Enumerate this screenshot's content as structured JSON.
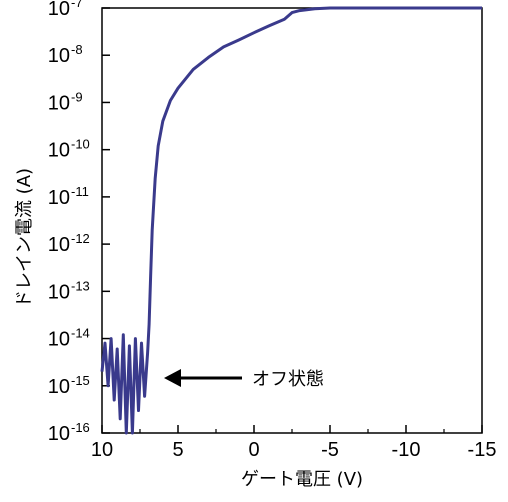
{
  "chart_data": {
    "type": "line",
    "xlabel": "ゲート電圧 (V)",
    "ylabel": "ドレイン電流 (A)",
    "x_ticks": [
      10,
      5,
      0,
      -5,
      -10,
      -15
    ],
    "x_tick_labels": [
      "10",
      "5",
      "0",
      "-5",
      "-10",
      "-15"
    ],
    "xlim": [
      10,
      -15
    ],
    "y_scale": "log",
    "ylim": [
      1e-16,
      1e-07
    ],
    "y_tick_labels": [
      {
        "base": "10",
        "exp": "-7"
      },
      {
        "base": "10",
        "exp": "-8"
      },
      {
        "base": "10",
        "exp": "-9"
      },
      {
        "base": "10",
        "exp": "-10"
      },
      {
        "base": "10",
        "exp": "-11"
      },
      {
        "base": "10",
        "exp": "-12"
      },
      {
        "base": "10",
        "exp": "-13"
      },
      {
        "base": "10",
        "exp": "-14"
      },
      {
        "base": "10",
        "exp": "-15"
      },
      {
        "base": "10",
        "exp": "-16"
      }
    ],
    "series": [
      {
        "color": "#3a3a8c",
        "x": [
          10,
          9.8,
          9.6,
          9.4,
          9.2,
          9.0,
          8.8,
          8.6,
          8.4,
          8.2,
          8.0,
          7.8,
          7.6,
          7.4,
          7.2,
          7.0,
          6.9,
          6.8,
          6.7,
          6.5,
          6.3,
          6.0,
          5.5,
          5.0,
          4.0,
          3.0,
          2.0,
          1.0,
          0.0,
          -1.0,
          -2.0,
          -2.5,
          -3.0,
          -4.0,
          -5.0,
          -7.5,
          -10.0,
          -12.5,
          -15.0
        ],
        "y": [
          2e-15,
          8e-15,
          1e-15,
          1e-14,
          5e-16,
          6e-15,
          2e-16,
          1.2e-14,
          1e-16,
          7e-15,
          1e-16,
          1e-14,
          3e-16,
          8e-15,
          6e-16,
          5e-15,
          2e-14,
          2e-13,
          2e-12,
          2.5e-11,
          1.2e-10,
          4e-10,
          1.1e-09,
          2e-09,
          5e-09,
          9e-09,
          1.5e-08,
          2.1e-08,
          3e-08,
          4.2e-08,
          5.8e-08,
          8e-08,
          8.8e-08,
          9.6e-08,
          1e-07,
          1.05e-07,
          1.1e-07,
          1.15e-07,
          1.2e-07
        ]
      }
    ],
    "annotations": [
      {
        "text": "オフ状態",
        "arrow_to": {
          "x": 6.8,
          "y": 1.2e-15
        }
      }
    ]
  },
  "colors": {
    "line": "#3a3a8c",
    "axis": "#000000"
  }
}
